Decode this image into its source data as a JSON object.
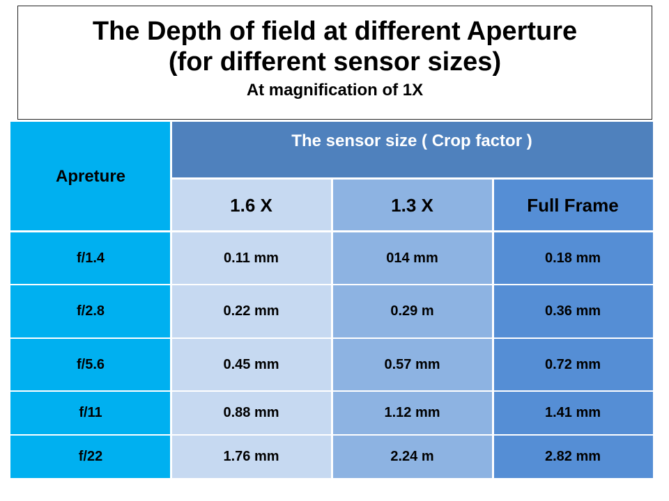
{
  "title": {
    "line1": "The Depth of field at different Aperture",
    "line2": "(for different sensor sizes)",
    "subtitle": "At magnification of 1X"
  },
  "table": {
    "aperture_header": "Apreture",
    "group_header": "The sensor size ( Crop factor )",
    "columns": [
      "1.6 X",
      "1.3 X",
      "Full Frame"
    ],
    "rows": [
      {
        "aperture": "f/1.4",
        "values": [
          "0.11 mm",
          "014 mm",
          "0.18 mm"
        ]
      },
      {
        "aperture": "f/2.8",
        "values": [
          "0.22 mm",
          "0.29 m",
          "0.36 mm"
        ]
      },
      {
        "aperture": "f/5.6",
        "values": [
          "0.45 mm",
          "0.57 mm",
          "0.72 mm"
        ]
      },
      {
        "aperture": "f/11",
        "values": [
          "0.88 mm",
          "1.12 mm",
          "1.41 mm"
        ]
      },
      {
        "aperture": "f/22",
        "values": [
          "1.76 mm",
          "2.24 m",
          "2.82 mm"
        ]
      }
    ]
  },
  "colors": {
    "aperture_column": "#00b0f0",
    "group_header": "#4f81bd",
    "col_1_6x": "#c6d9f1",
    "col_1_3x": "#8db3e2",
    "col_full_frame": "#558ed5"
  }
}
